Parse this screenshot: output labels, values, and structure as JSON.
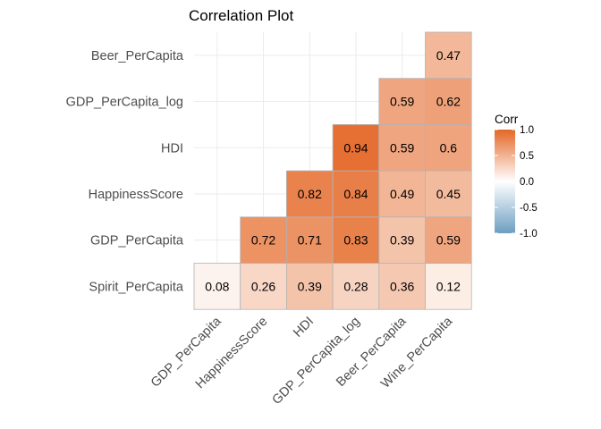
{
  "chart_data": {
    "type": "heatmap",
    "title": "Correlation Plot",
    "xlabel": "",
    "ylabel": "",
    "x_categories": [
      "GDP_PerCapita",
      "HappinessScore",
      "HDI",
      "GDP_PerCapita_log",
      "Beer_PerCapita",
      "Wine_PerCapita"
    ],
    "y_categories": [
      "Spirit_PerCapita",
      "GDP_PerCapita",
      "HappinessScore",
      "HDI",
      "GDP_PerCapita_log",
      "Beer_PerCapita"
    ],
    "cells": [
      {
        "x": "GDP_PerCapita",
        "y": "Spirit_PerCapita",
        "value": 0.08
      },
      {
        "x": "HappinessScore",
        "y": "Spirit_PerCapita",
        "value": 0.26
      },
      {
        "x": "HDI",
        "y": "Spirit_PerCapita",
        "value": 0.39
      },
      {
        "x": "GDP_PerCapita_log",
        "y": "Spirit_PerCapita",
        "value": 0.28
      },
      {
        "x": "Beer_PerCapita",
        "y": "Spirit_PerCapita",
        "value": 0.36
      },
      {
        "x": "Wine_PerCapita",
        "y": "Spirit_PerCapita",
        "value": 0.12
      },
      {
        "x": "HappinessScore",
        "y": "GDP_PerCapita",
        "value": 0.72
      },
      {
        "x": "HDI",
        "y": "GDP_PerCapita",
        "value": 0.71
      },
      {
        "x": "GDP_PerCapita_log",
        "y": "GDP_PerCapita",
        "value": 0.83
      },
      {
        "x": "Beer_PerCapita",
        "y": "GDP_PerCapita",
        "value": 0.39
      },
      {
        "x": "Wine_PerCapita",
        "y": "GDP_PerCapita",
        "value": 0.59
      },
      {
        "x": "HDI",
        "y": "HappinessScore",
        "value": 0.82
      },
      {
        "x": "GDP_PerCapita_log",
        "y": "HappinessScore",
        "value": 0.84
      },
      {
        "x": "Beer_PerCapita",
        "y": "HappinessScore",
        "value": 0.49
      },
      {
        "x": "Wine_PerCapita",
        "y": "HappinessScore",
        "value": 0.45
      },
      {
        "x": "GDP_PerCapita_log",
        "y": "HDI",
        "value": 0.94
      },
      {
        "x": "Beer_PerCapita",
        "y": "HDI",
        "value": 0.59
      },
      {
        "x": "Wine_PerCapita",
        "y": "HDI",
        "value": 0.6
      },
      {
        "x": "Beer_PerCapita",
        "y": "GDP_PerCapita_log",
        "value": 0.59
      },
      {
        "x": "Wine_PerCapita",
        "y": "GDP_PerCapita_log",
        "value": 0.62
      },
      {
        "x": "Wine_PerCapita",
        "y": "Beer_PerCapita",
        "value": 0.47
      }
    ],
    "legend": {
      "title": "Corr",
      "placement": "right",
      "ticks": [
        "1.0",
        "0.5",
        "0.0",
        "-0.5",
        "-1.0"
      ],
      "range": [
        -1,
        1
      ]
    },
    "colors": {
      "high": "#E46726",
      "mid": "#FFFFFF",
      "low": "#6D9EC1",
      "cell_border": "#B3B3B3",
      "grid": "#EBEBEB"
    },
    "grid": true
  }
}
